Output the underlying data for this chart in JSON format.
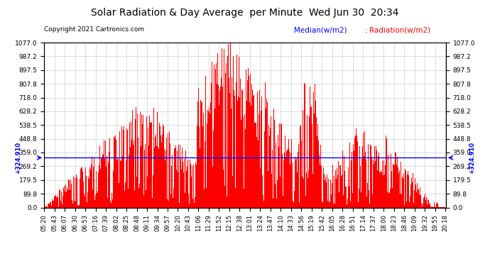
{
  "title": "Solar Radiation & Day Average  per Minute  Wed Jun 30  20:34",
  "copyright": "Copyright 2021 Cartronics.com",
  "legend_median": "Median(w/m2)",
  "legend_radiation": "Radiation(w/m2)",
  "median_value": 324.91,
  "median_label": "+324.910",
  "y_ticks": [
    0.0,
    89.8,
    179.5,
    269.2,
    359.0,
    448.8,
    538.5,
    628.2,
    718.0,
    807.8,
    897.5,
    987.2,
    1077.0
  ],
  "y_max": 1077.0,
  "y_min": 0.0,
  "background_color": "#ffffff",
  "grid_color": "#bbbbbb",
  "bar_color": "#ff0000",
  "median_color": "#0000ff",
  "title_color": "#000000",
  "copyright_color": "#000000",
  "x_labels": [
    "05:20",
    "05:43",
    "06:07",
    "06:30",
    "06:53",
    "07:16",
    "07:39",
    "08:02",
    "08:25",
    "08:48",
    "09:11",
    "09:34",
    "09:57",
    "10:20",
    "10:43",
    "11:06",
    "11:29",
    "11:52",
    "12:15",
    "12:38",
    "13:01",
    "13:24",
    "13:47",
    "14:10",
    "14:33",
    "14:56",
    "15:19",
    "15:42",
    "16:05",
    "16:28",
    "16:51",
    "17:14",
    "17:37",
    "18:00",
    "18:23",
    "18:46",
    "19:09",
    "19:32",
    "19:55",
    "20:18"
  ],
  "num_bars": 900,
  "seed": 7
}
